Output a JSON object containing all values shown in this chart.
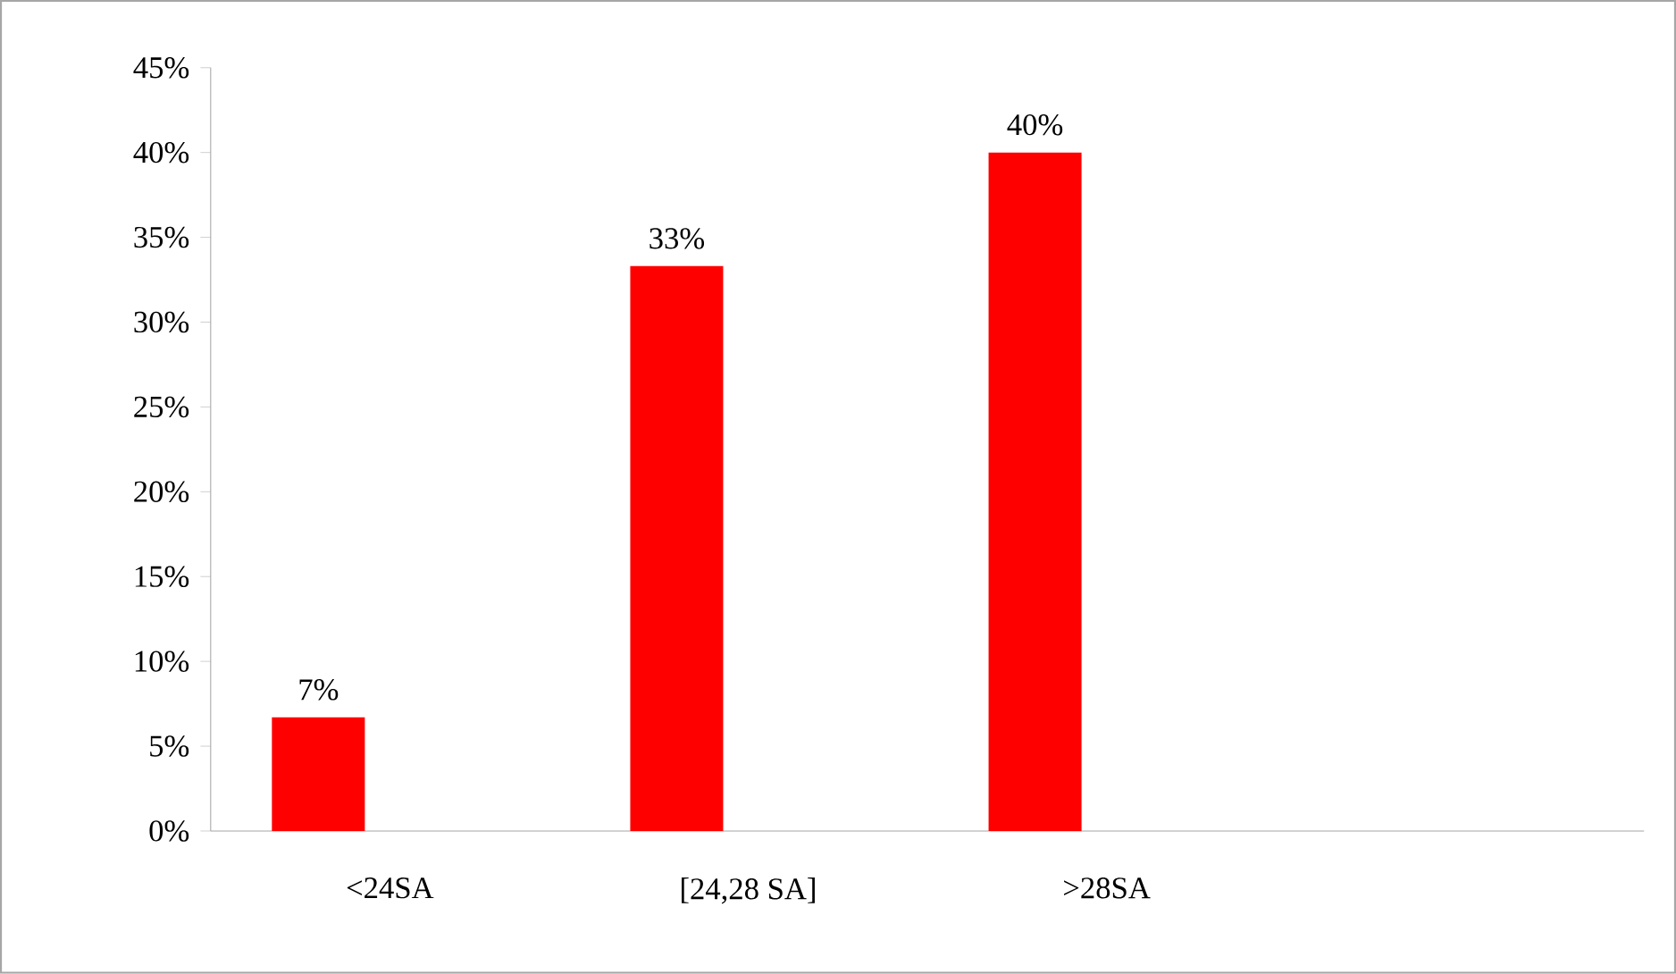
{
  "chart_data": {
    "type": "bar",
    "categories": [
      "<24SA",
      "[24,28 SA]",
      ">28SA",
      null
    ],
    "values": [
      6.7,
      33.3,
      40,
      null
    ],
    "value_labels": [
      "7%",
      "33%",
      "40%",
      null
    ],
    "color": "#ff0000",
    "ylim": [
      0,
      45
    ],
    "yticks": [
      {
        "value": 0,
        "label": "0%"
      },
      {
        "value": 5,
        "label": "5%"
      },
      {
        "value": 10,
        "label": "10%"
      },
      {
        "value": 15,
        "label": "15%"
      },
      {
        "value": 20,
        "label": "20%"
      },
      {
        "value": 25,
        "label": "25%"
      },
      {
        "value": 30,
        "label": "30%"
      },
      {
        "value": 35,
        "label": "35%"
      },
      {
        "value": 40,
        "label": "40%"
      },
      {
        "value": 45,
        "label": "45%"
      }
    ],
    "grid": false
  }
}
